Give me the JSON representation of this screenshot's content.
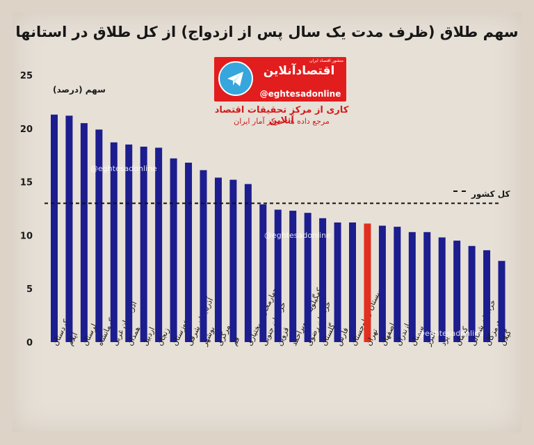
{
  "title": "سهم طلاق (ظرف مدت یک سال پس از ازدواج) از کل طلاق در استانها",
  "brand": {
    "name": "اقتصادآنلاین",
    "tagline": "منشور اقتصاد ایران",
    "handle": "@eghtesadonline",
    "icon": "telegram-icon"
  },
  "credit": "کاری از مرکز تحقیقات اقتصاد آنلاین",
  "source": "مرجع داده ها: مرکز آمار ایران",
  "watermark": "@eghtesadonline",
  "colors": {
    "bar": "#1c1d8e",
    "highlight": "#e03020",
    "background": "#e7e0d7"
  },
  "chart_data": {
    "type": "bar",
    "ylabel": "سهم (درصد)",
    "ylim": [
      0,
      25
    ],
    "yticks": [
      "0",
      "5",
      "10",
      "15",
      "20",
      "25"
    ],
    "grid": false,
    "reference_line": {
      "label": "کل کشور",
      "value": 13
    },
    "categories": [
      "کردستان",
      "ایلام",
      "لرستان",
      "کرمانشاه",
      "آذربایجان غربی",
      "همدان",
      "اردبیل",
      "زنجان",
      "خوزستان",
      "آذربایجان شرقی",
      "بوشهر",
      "مرکزی",
      "قم",
      "چهارمحال و بختیاری",
      "خراسان جنوبی",
      "قزوین",
      "کهگیلویه و بویراحمد",
      "خراسان رضوی",
      "گلستان",
      "فارس",
      "سیستان و بلوچستان",
      "تهران",
      "اصفهان",
      "مازندران",
      "سمنان",
      "البرز",
      "یزد",
      "کرمان",
      "خراسان شمالی",
      "هرمزگان",
      "گیلان"
    ],
    "values": [
      21.3,
      21.2,
      20.5,
      19.9,
      18.7,
      18.5,
      18.3,
      18.2,
      17.2,
      16.8,
      16.1,
      15.4,
      15.2,
      14.8,
      12.9,
      12.4,
      12.3,
      12.1,
      11.6,
      11.2,
      11.2,
      11.1,
      10.9,
      10.8,
      10.3,
      10.3,
      9.8,
      9.5,
      9.0,
      8.6,
      7.6
    ],
    "highlight": "تهران"
  }
}
